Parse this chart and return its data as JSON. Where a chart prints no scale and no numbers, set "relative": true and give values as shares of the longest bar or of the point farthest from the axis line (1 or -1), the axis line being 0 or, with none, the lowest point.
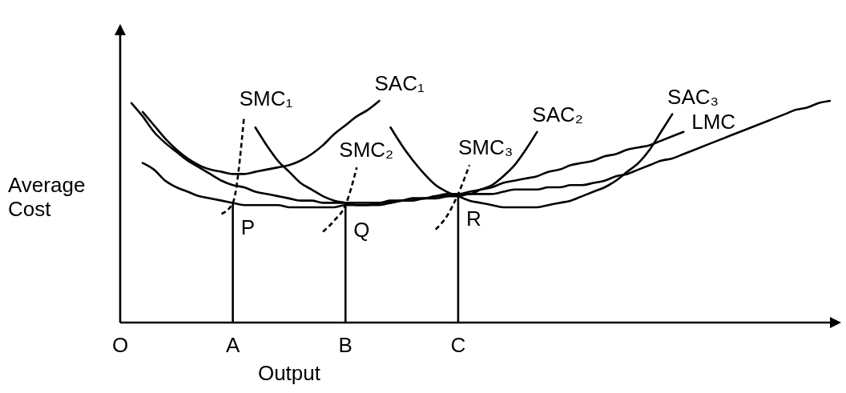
{
  "chart_data": {
    "type": "line",
    "xlabel": "Output",
    "ylabel": "Average Cost",
    "relative": true,
    "categories": [
      "O",
      null,
      null,
      null,
      null,
      null,
      null,
      null,
      null,
      null,
      "A",
      null,
      null,
      null,
      null,
      null,
      null,
      null,
      null,
      null,
      "B",
      null,
      null,
      null,
      null,
      null,
      null,
      null,
      null,
      null,
      "C",
      null,
      null,
      null,
      null,
      null,
      null,
      null,
      null,
      null,
      null,
      null,
      null,
      null,
      null,
      null,
      null,
      null,
      null,
      null,
      null,
      null,
      null,
      null,
      null,
      null,
      null,
      null,
      null,
      null,
      null,
      null,
      null,
      null
    ],
    "series": [
      {
        "name": "SAC₁",
        "color": "#000000",
        "values": [
          null,
          null,
          0.95,
          0.89,
          0.83,
          0.78,
          0.74,
          0.71,
          0.69,
          0.68,
          0.67,
          0.67,
          0.68,
          0.69,
          0.7,
          0.71,
          0.73,
          0.76,
          0.8,
          0.85,
          0.89,
          0.93,
          0.96,
          1.0,
          null,
          null,
          null,
          null,
          null,
          null,
          null,
          null,
          null,
          null,
          null,
          null,
          null,
          null,
          null,
          null,
          null,
          null,
          null,
          null,
          null,
          null,
          null,
          null,
          null,
          null,
          null,
          null,
          null,
          null,
          null,
          null,
          null,
          null,
          null,
          null,
          null,
          null,
          null,
          null
        ]
      },
      {
        "name": "SAC₂",
        "color": "#000000",
        "values": [
          null,
          null,
          null,
          null,
          null,
          null,
          null,
          null,
          null,
          null,
          null,
          null,
          0.88,
          0.8,
          0.73,
          0.68,
          0.63,
          0.6,
          0.57,
          0.55,
          0.54,
          0.53,
          0.53,
          0.54,
          0.54,
          0.55,
          0.55,
          0.56,
          0.56,
          0.57,
          0.58,
          0.58,
          0.6,
          0.62,
          0.66,
          0.71,
          0.78,
          0.86,
          null,
          null,
          null,
          null,
          null,
          null,
          null,
          null,
          null,
          null,
          null,
          null,
          null,
          null,
          null,
          null,
          null,
          null,
          null,
          null,
          null,
          null,
          null,
          null,
          null,
          null
        ]
      },
      {
        "name": "SAC₃",
        "color": "#000000",
        "values": [
          null,
          null,
          null,
          null,
          null,
          null,
          null,
          null,
          null,
          null,
          null,
          null,
          null,
          null,
          null,
          null,
          null,
          null,
          null,
          null,
          null,
          null,
          null,
          null,
          0.88,
          0.8,
          0.73,
          0.67,
          0.62,
          0.59,
          0.57,
          0.55,
          0.54,
          0.53,
          0.52,
          0.52,
          0.52,
          0.52,
          0.53,
          0.54,
          0.55,
          0.57,
          0.59,
          0.61,
          0.64,
          0.68,
          0.72,
          0.78,
          0.86,
          0.94,
          null,
          null,
          null,
          null,
          null,
          null,
          null,
          null,
          null,
          null,
          null,
          null,
          null,
          null
        ]
      },
      {
        "name": "SMC₁",
        "color": "#000000",
        "line_style": "dashed",
        "values": [
          null,
          null,
          null,
          null,
          null,
          null,
          null,
          null,
          null,
          0.49,
          0.54,
          0.93,
          null,
          null,
          null,
          null,
          null,
          null,
          null,
          null,
          null,
          null,
          null,
          null,
          null,
          null,
          null,
          null,
          null,
          null,
          null,
          null,
          null,
          null,
          null,
          null,
          null,
          null,
          null,
          null,
          null,
          null,
          null,
          null,
          null,
          null,
          null,
          null,
          null,
          null,
          null,
          null,
          null,
          null,
          null,
          null,
          null,
          null,
          null,
          null,
          null,
          null,
          null,
          null
        ]
      },
      {
        "name": "SMC₂",
        "color": "#000000",
        "line_style": "dashed",
        "values": [
          null,
          null,
          null,
          null,
          null,
          null,
          null,
          null,
          null,
          null,
          null,
          null,
          null,
          null,
          null,
          null,
          null,
          null,
          0.41,
          0.46,
          0.53,
          0.7,
          null,
          null,
          null,
          null,
          null,
          null,
          null,
          null,
          null,
          null,
          null,
          null,
          null,
          null,
          null,
          null,
          null,
          null,
          null,
          null,
          null,
          null,
          null,
          null,
          null,
          null,
          null,
          null,
          null,
          null,
          null,
          null,
          null,
          null,
          null,
          null,
          null,
          null,
          null,
          null,
          null,
          null
        ]
      },
      {
        "name": "SMC₃",
        "color": "#000000",
        "line_style": "dashed",
        "values": [
          null,
          null,
          null,
          null,
          null,
          null,
          null,
          null,
          null,
          null,
          null,
          null,
          null,
          null,
          null,
          null,
          null,
          null,
          null,
          null,
          null,
          null,
          null,
          null,
          null,
          null,
          null,
          null,
          0.42,
          0.48,
          0.58,
          0.71,
          null,
          null,
          null,
          null,
          null,
          null,
          null,
          null,
          null,
          null,
          null,
          null,
          null,
          null,
          null,
          null,
          null,
          null,
          null,
          null,
          null,
          null,
          null,
          null,
          null,
          null,
          null,
          null,
          null,
          null,
          null,
          null
        ]
      },
      {
        "name": "LMC",
        "color": "#000000",
        "values": [
          null,
          null,
          0.72,
          0.69,
          0.64,
          0.61,
          0.59,
          0.57,
          0.56,
          0.55,
          0.54,
          0.53,
          0.53,
          0.53,
          0.53,
          0.52,
          0.52,
          0.52,
          0.52,
          0.52,
          0.53,
          0.53,
          0.53,
          0.53,
          0.54,
          0.55,
          0.56,
          0.56,
          0.57,
          0.58,
          0.58,
          0.59,
          0.6,
          0.61,
          0.63,
          0.64,
          0.65,
          0.66,
          0.68,
          0.69,
          0.71,
          0.72,
          0.73,
          0.75,
          0.76,
          0.78,
          0.79,
          0.8,
          0.82,
          0.84,
          0.86,
          null,
          null,
          null,
          null,
          null,
          null,
          null,
          null,
          null,
          null,
          null,
          null,
          null
        ]
      },
      {
        "color": "#000000",
        "values": [
          null,
          0.99,
          0.93,
          0.86,
          0.81,
          0.77,
          0.73,
          0.7,
          0.67,
          0.64,
          0.62,
          0.61,
          0.59,
          0.58,
          0.57,
          0.56,
          0.55,
          0.55,
          0.54,
          0.54,
          0.54,
          0.54,
          0.54,
          0.54,
          0.55,
          0.55,
          0.56,
          0.56,
          0.57,
          0.57,
          0.57,
          0.58,
          0.58,
          0.58,
          0.59,
          0.6,
          0.6,
          0.6,
          0.61,
          0.61,
          0.62,
          0.62,
          0.63,
          0.64,
          0.66,
          0.67,
          0.69,
          0.71,
          0.73,
          0.74,
          0.76,
          0.78,
          0.8,
          0.82,
          0.84,
          0.86,
          0.88,
          0.9,
          0.92,
          0.94,
          0.96,
          0.97,
          0.99,
          1.0
        ]
      },
      {
        "color": "#000000",
        "x": [
          "A",
          "A"
        ],
        "values": [
          0,
          0.54
        ]
      },
      {
        "color": "#000000",
        "x": [
          "B",
          "B"
        ],
        "values": [
          0,
          0.53
        ]
      },
      {
        "color": "#000000",
        "x": [
          "C",
          "C"
        ],
        "values": [
          0,
          0.58
        ]
      }
    ],
    "annotations": [
      {
        "text": "P",
        "x": "A",
        "y": 0.54
      },
      {
        "text": "Q",
        "x": "B",
        "y": 0.53
      },
      {
        "text": "R",
        "x": "C",
        "y": 0.58
      }
    ]
  }
}
